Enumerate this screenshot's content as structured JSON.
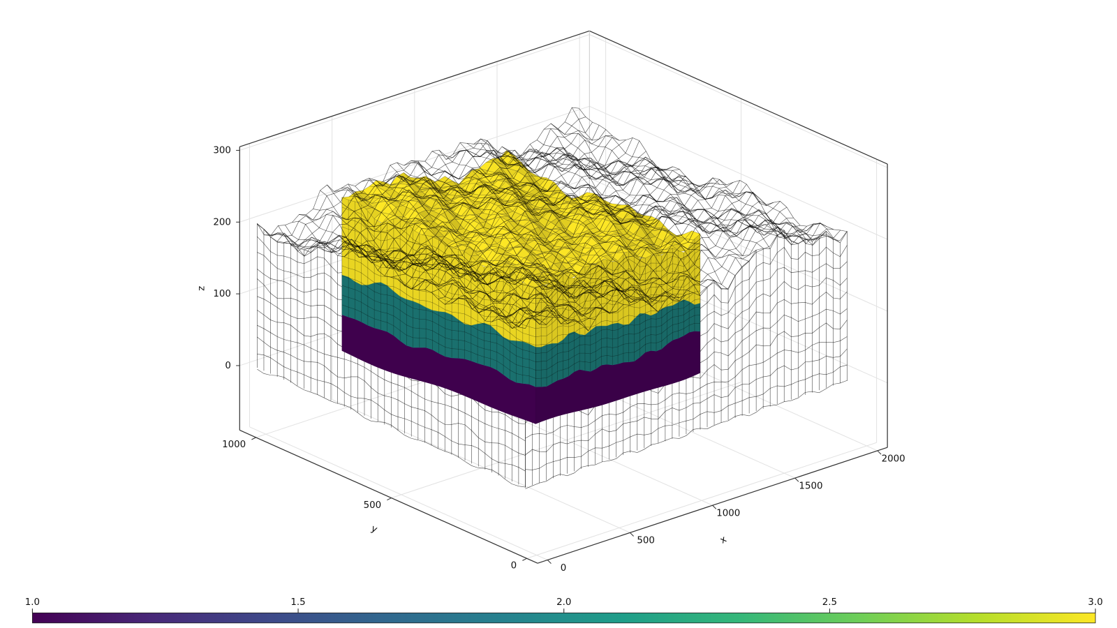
{
  "chart_data": {
    "type": "geological-model-3d",
    "xlabel": "x",
    "ylabel": "y",
    "zlabel": "z",
    "xlim": [
      -60,
      2060
    ],
    "ylim": [
      -40,
      1060
    ],
    "zlim": [
      -90,
      305
    ],
    "xticks": [
      0,
      500,
      1000,
      1500,
      2000
    ],
    "yticks": [
      0,
      500,
      1000
    ],
    "zticks": [
      0,
      100,
      200,
      300
    ],
    "grid": true,
    "layers": [
      {
        "value": 1,
        "color": "#440154"
      },
      {
        "value": 2,
        "color": "#21908d"
      },
      {
        "value": 3,
        "color": "#fde725"
      }
    ],
    "colorbar": {
      "colormap": "viridis",
      "clim": [
        1,
        3
      ],
      "ticks": [
        {
          "value": 1,
          "label": "1.0"
        },
        {
          "value": 1.5,
          "label": "1.5"
        },
        {
          "value": 2,
          "label": "2.0"
        },
        {
          "value": 2.5,
          "label": "2.5"
        },
        {
          "value": 3,
          "label": "3.0"
        }
      ]
    }
  }
}
